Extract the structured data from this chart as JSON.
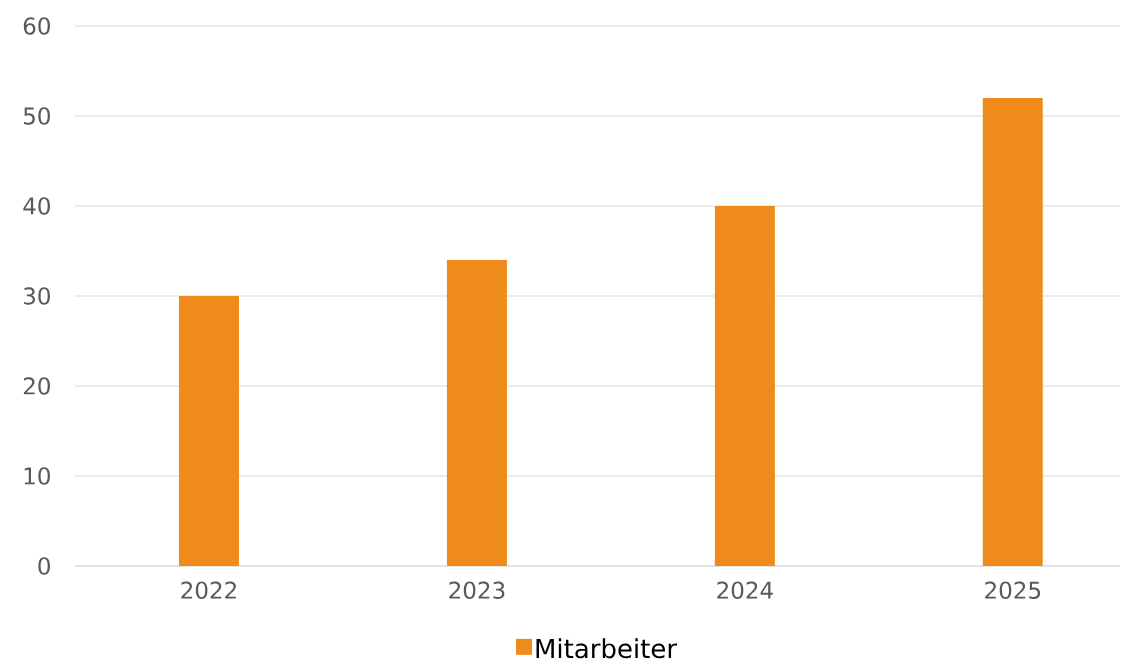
{
  "chart_data": {
    "type": "bar",
    "categories": [
      "2022",
      "2023",
      "2024",
      "2025"
    ],
    "series": [
      {
        "name": "Mitarbeiter",
        "color": "#ee8b1b",
        "values": [
          30,
          34,
          40,
          52
        ]
      }
    ],
    "ylim": [
      0,
      60
    ],
    "yticks": [
      0,
      10,
      20,
      30,
      40,
      50,
      60
    ],
    "grid": "y",
    "legend": "bottom"
  }
}
